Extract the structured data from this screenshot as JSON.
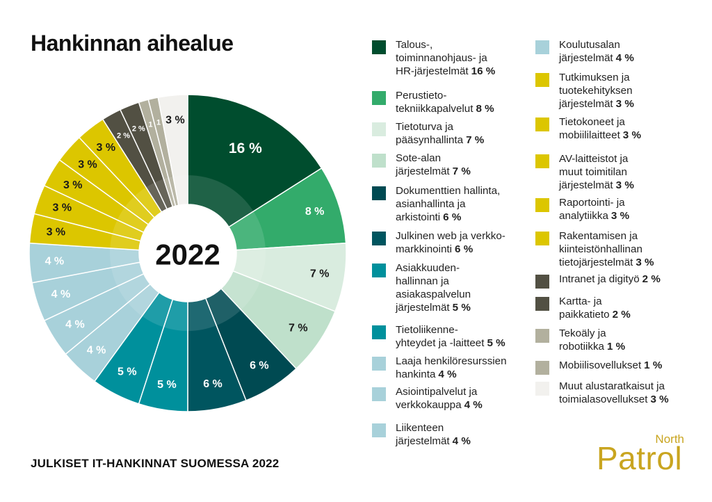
{
  "title": "Hankinnan aihealue",
  "footer": "JULKISET IT-HANKINNAT SUOMESSA 2022",
  "logo": {
    "small": "North",
    "large": "Patrol"
  },
  "chart_data": {
    "type": "pie",
    "center_label": "2022",
    "categories": [
      "Talous-, toiminnanohjaus- ja HR-järjestelmät",
      "Perustietotekniikkapalvelut",
      "Tietoturva ja pääsynhallinta",
      "Sote-alan järjestelmät",
      "Dokumenttien hallinta, asianhallinta ja arkistointi",
      "Julkinen web ja verkkomarkkinointi",
      "Asiakkuudenhallinnan ja asiakaspalvelun järjestelmät",
      "Tietoliikenneyhteydet ja -laitteet",
      "Laaja henkilöresurssien hankinta",
      "Asiointipalvelut ja verkkokauppa",
      "Liikenteen järjestelmät",
      "Koulutusalan järjestelmät",
      "Tutkimuksen ja tuotekehityksen järjestelmät",
      "Tietokoneet ja mobiililaitteet",
      "AV-laitteistot ja muut toimitilan järjestelmät",
      "Raportointi- ja analytiikka",
      "Rakentamisen ja kiinteistönhallinan tietojärjestelmät",
      "Intranet ja digityö",
      "Kartta- ja paikkatieto",
      "Tekoäly ja robotiikka",
      "Mobiilisovellukset",
      "Muut alustaratkaisut ja toimialasovellukset"
    ],
    "values": [
      16,
      8,
      7,
      7,
      6,
      6,
      5,
      5,
      4,
      4,
      4,
      4,
      3,
      3,
      3,
      3,
      3,
      2,
      2,
      1,
      1,
      3
    ],
    "slice_labels": [
      "16 %",
      "8 %",
      "7 %",
      "7 %",
      "6 %",
      "6 %",
      "5 %",
      "5 %",
      "4 %",
      "4 %",
      "4 %",
      "4 %",
      "3 %",
      "3 %",
      "3 %",
      "3 %",
      "3 %",
      "2 %",
      "2 %",
      "1",
      "1",
      "3 %"
    ],
    "colors": [
      "#004d2e",
      "#33ab6b",
      "#d9ecdf",
      "#bfe0cb",
      "#004a52",
      "#00555f",
      "#00909c",
      "#00909c",
      "#a8d1da",
      "#a8d1da",
      "#a8d1da",
      "#a8d1da",
      "#dcc600",
      "#dcc600",
      "#dcc600",
      "#dcc600",
      "#dcc600",
      "#525043",
      "#525043",
      "#b2b09e",
      "#b2b09e",
      "#f2f1ee"
    ],
    "label_colors": [
      "#ffffff",
      "#ffffff",
      "#1a1a1a",
      "#1a1a1a",
      "#ffffff",
      "#ffffff",
      "#ffffff",
      "#ffffff",
      "#ffffff",
      "#ffffff",
      "#ffffff",
      "#ffffff",
      "#1a1a1a",
      "#1a1a1a",
      "#1a1a1a",
      "#1a1a1a",
      "#1a1a1a",
      "#ffffff",
      "#ffffff",
      "#ffffff",
      "#ffffff",
      "#1a1a1a"
    ]
  },
  "legend": [
    {
      "text": "Talous-,\ntoiminnanohjaus- ja\nHR-järjestelmät",
      "pct": "16 %"
    },
    {
      "text": "Perustieto-\ntekniikkapalvelut",
      "pct": "8 %"
    },
    {
      "text": "Tietoturva ja\npääsynhallinta",
      "pct": "7 %"
    },
    {
      "text": "Sote-alan\njärjestelmät",
      "pct": "7 %"
    },
    {
      "text": "Dokumenttien hallinta,\nasianhallinta ja\narkistointi",
      "pct": "6 %"
    },
    {
      "text": "Julkinen web ja verkko-\nmarkkinointi",
      "pct": "6 %"
    },
    {
      "text": "Asiakkuuden-\nhallinnan ja\nasiakaspalvelun\njärjestelmät",
      "pct": "5 %"
    },
    {
      "text": "Tietoliikenne-\nyhteydet ja -laitteet",
      "pct": "5 %"
    },
    {
      "text": "Laaja henkilöresurssien\nhankinta",
      "pct": "4 %"
    },
    {
      "text": "Asiointipalvelut ja\nverkkokauppa",
      "pct": "4 %"
    },
    {
      "text": "Liikenteen\njärjestelmät",
      "pct": "4 %"
    },
    {
      "text": "Koulutusalan\njärjestelmät",
      "pct": "4 %"
    },
    {
      "text": "Tutkimuksen ja\ntuotekehityksen\njärjestelmät",
      "pct": "3 %"
    },
    {
      "text": "Tietokoneet ja\nmobiililaitteet",
      "pct": "3 %"
    },
    {
      "text": "AV-laitteistot ja\nmuut toimitilan\njärjestelmät",
      "pct": "3 %"
    },
    {
      "text": "Raportointi- ja\nanalytiikka",
      "pct": "3 %"
    },
    {
      "text": "Rakentamisen ja\nkiinteistönhallinan\ntietojärjestelmät",
      "pct": "3 %"
    },
    {
      "text": "Intranet ja digityö",
      "pct": "2 %"
    },
    {
      "text": "Kartta- ja\npaikkatieto",
      "pct": "2 %"
    },
    {
      "text": "Tekoäly ja\nrobotiikka",
      "pct": "1 %"
    },
    {
      "text": "Mobiilisovellukset",
      "pct": "1 %"
    },
    {
      "text": "Muut alustaratkaisut ja\ntoimialasovellukset",
      "pct": "3 %"
    }
  ]
}
